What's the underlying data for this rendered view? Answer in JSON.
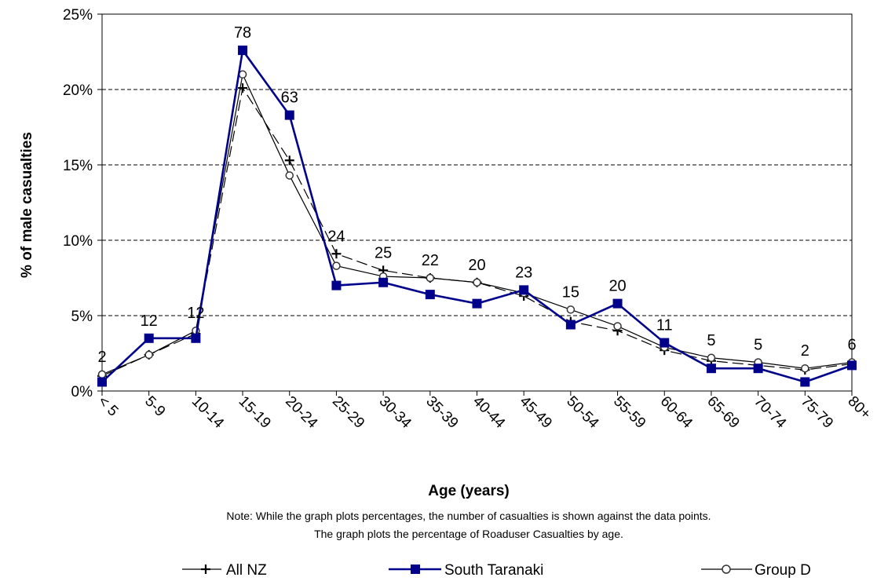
{
  "chart_data": {
    "type": "line",
    "xlabel": "Age (years)",
    "ylabel": "% of male casualties",
    "ylim": [
      0,
      25
    ],
    "yticks": [
      "0%",
      "5%",
      "10%",
      "15%",
      "20%",
      "25%"
    ],
    "grid": "horizontal dashed",
    "legend_placement": "bottom",
    "categories": [
      "< 5",
      "5-9",
      "10-14",
      "15-19",
      "20-24",
      "25-29",
      "30-34",
      "35-39",
      "40-44",
      "45-49",
      "50-54",
      "55-59",
      "60-64",
      "65-69",
      "70-74",
      "75-79",
      "80+"
    ],
    "series": [
      {
        "name": "All NZ",
        "marker": "plus",
        "line": "dashed",
        "color": "#000000",
        "values": [
          1.0,
          2.4,
          3.8,
          20.1,
          15.3,
          9.1,
          8.0,
          7.5,
          7.2,
          6.3,
          4.6,
          4.0,
          2.7,
          2.0,
          1.7,
          1.4,
          1.8
        ]
      },
      {
        "name": "South Taranaki",
        "marker": "square",
        "line": "solid",
        "color": "#00008b",
        "values": [
          0.6,
          3.5,
          3.5,
          22.6,
          18.3,
          7.0,
          7.2,
          6.4,
          5.8,
          6.7,
          4.4,
          5.8,
          3.2,
          1.5,
          1.5,
          0.6,
          1.7
        ]
      },
      {
        "name": "Group D",
        "marker": "circle",
        "line": "solid",
        "color": "#000000",
        "values": [
          1.1,
          2.4,
          4.0,
          21.0,
          14.3,
          8.3,
          7.6,
          7.5,
          7.2,
          6.5,
          5.4,
          4.3,
          2.9,
          2.2,
          1.9,
          1.5,
          1.9
        ]
      }
    ],
    "data_labels": [
      "2",
      "12",
      "12",
      "78",
      "63",
      "24",
      "25",
      "22",
      "20",
      "23",
      "15",
      "20",
      "11",
      "5",
      "5",
      "2",
      "6"
    ],
    "note_lines": [
      "Note: While the graph plots percentages, the number of casualties is shown against the  data points.",
      "The graph plots the percentage of Roaduser Casualties by age."
    ]
  }
}
